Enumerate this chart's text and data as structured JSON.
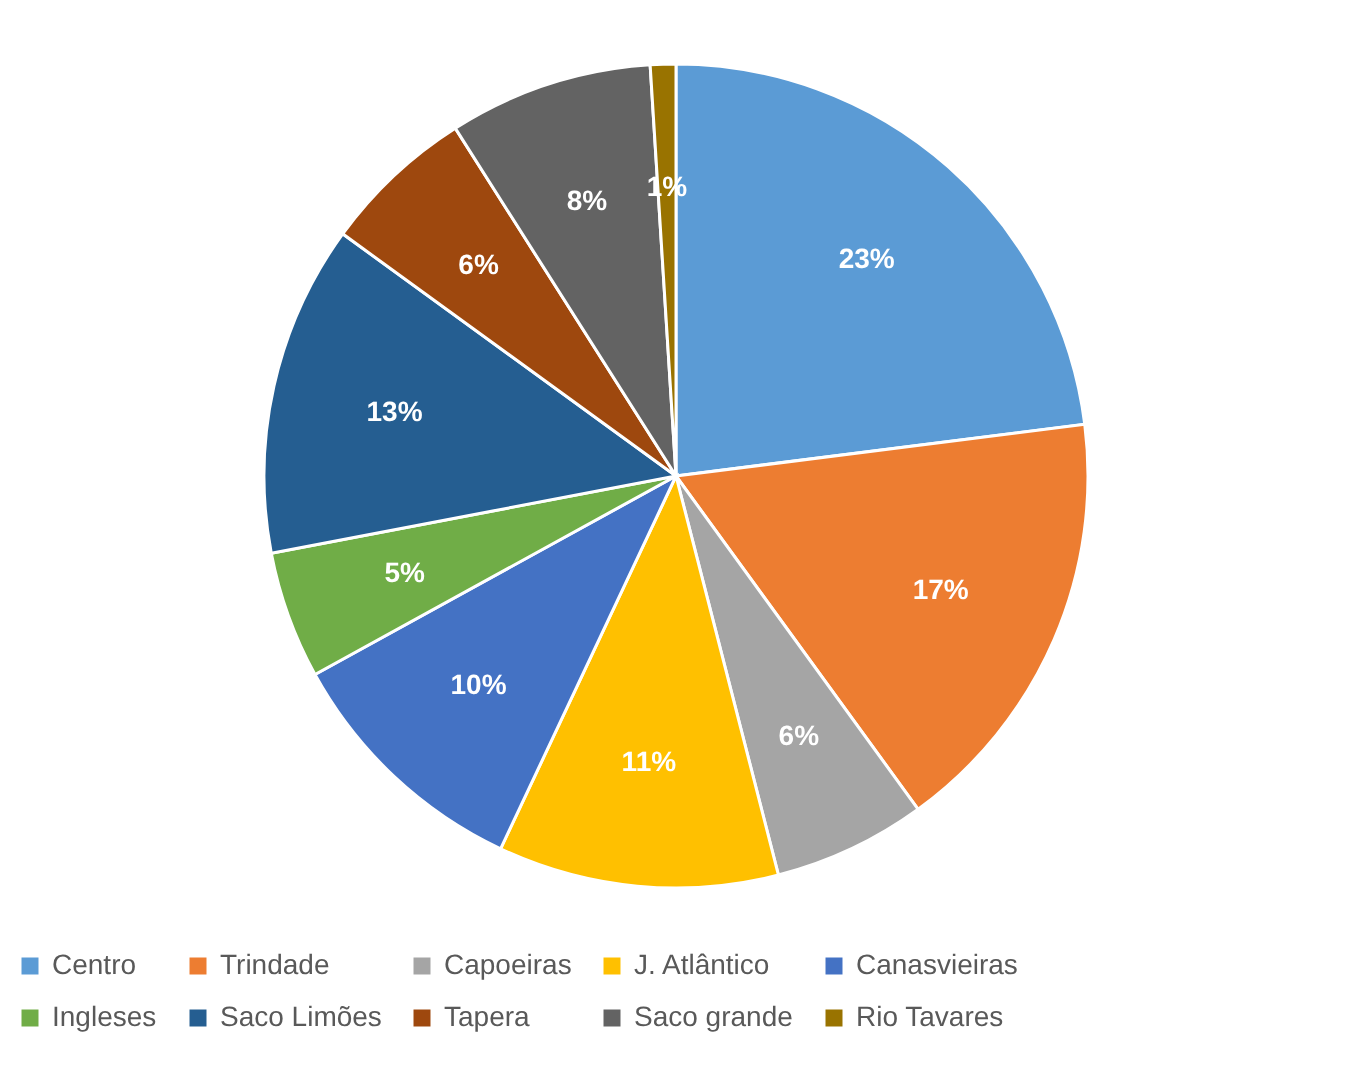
{
  "chart_data": {
    "type": "pie",
    "categories": [
      "Centro",
      "Trindade",
      "Capoeiras",
      "J. Atlântico",
      "Canasvieiras",
      "Ingleses",
      "Saco Limões",
      "Tapera",
      "Saco grande",
      "Rio Tavares"
    ],
    "values": [
      23,
      17,
      6,
      11,
      10,
      5,
      13,
      6,
      8,
      1
    ],
    "value_labels": [
      "23%",
      "17%",
      "6%",
      "11%",
      "10%",
      "5%",
      "13%",
      "6%",
      "8%",
      "1%"
    ],
    "colors": [
      "#5b9bd5",
      "#ed7d31",
      "#a5a5a5",
      "#ffc000",
      "#4472c4",
      "#70ad47",
      "#255e91",
      "#9e480e",
      "#636363",
      "#997300"
    ],
    "legend": "bottom"
  }
}
